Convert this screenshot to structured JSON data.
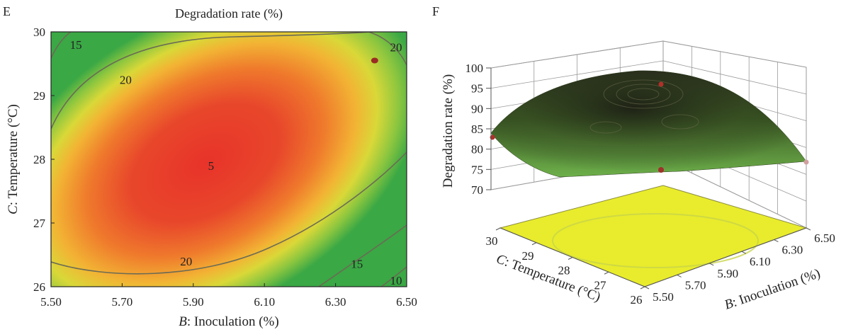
{
  "chart_data": [
    {
      "panel_label": "E",
      "type": "contour",
      "title": "Degradation rate (%)",
      "xlabel_var": "B",
      "xlabel_rest": ": Inoculation (%)",
      "ylabel_var": "C",
      "ylabel_rest": ": Temperature (°C)",
      "x_ticks": [
        "5.50",
        "5.70",
        "5.90",
        "6.10",
        "6.30",
        "6.50"
      ],
      "y_ticks": [
        "26",
        "27",
        "28",
        "29",
        "30"
      ],
      "xlim": [
        5.5,
        6.5
      ],
      "ylim": [
        26,
        30
      ],
      "contour_labels": [
        {
          "text": "15",
          "x": 5.57,
          "y": 29.8
        },
        {
          "text": "20",
          "x": 5.71,
          "y": 29.25
        },
        {
          "text": "20",
          "x": 6.47,
          "y": 29.76
        },
        {
          "text": "5",
          "x": 5.95,
          "y": 27.9
        },
        {
          "text": "20",
          "x": 5.88,
          "y": 26.4
        },
        {
          "text": "15",
          "x": 6.36,
          "y": 26.36
        },
        {
          "text": "10",
          "x": 6.47,
          "y": 26.1
        }
      ],
      "design_point": {
        "x": 6.41,
        "y": 29.55
      }
    },
    {
      "panel_label": "F",
      "type": "surface3d",
      "zlabel": "Degradation rate (%)",
      "z_ticks": [
        "70",
        "75",
        "80",
        "85",
        "90",
        "95",
        "100"
      ],
      "x_axis_var": "B",
      "x_axis_rest": ": Inoculation (%)",
      "x_ticks": [
        "5.50",
        "5.70",
        "5.90",
        "6.10",
        "6.30",
        "6.50"
      ],
      "y_axis_var": "C",
      "y_axis_rest": ": Temperature (°C)",
      "y_ticks": [
        "26",
        "27",
        "28",
        "29",
        "30"
      ],
      "zlim": [
        70,
        100
      ]
    }
  ]
}
